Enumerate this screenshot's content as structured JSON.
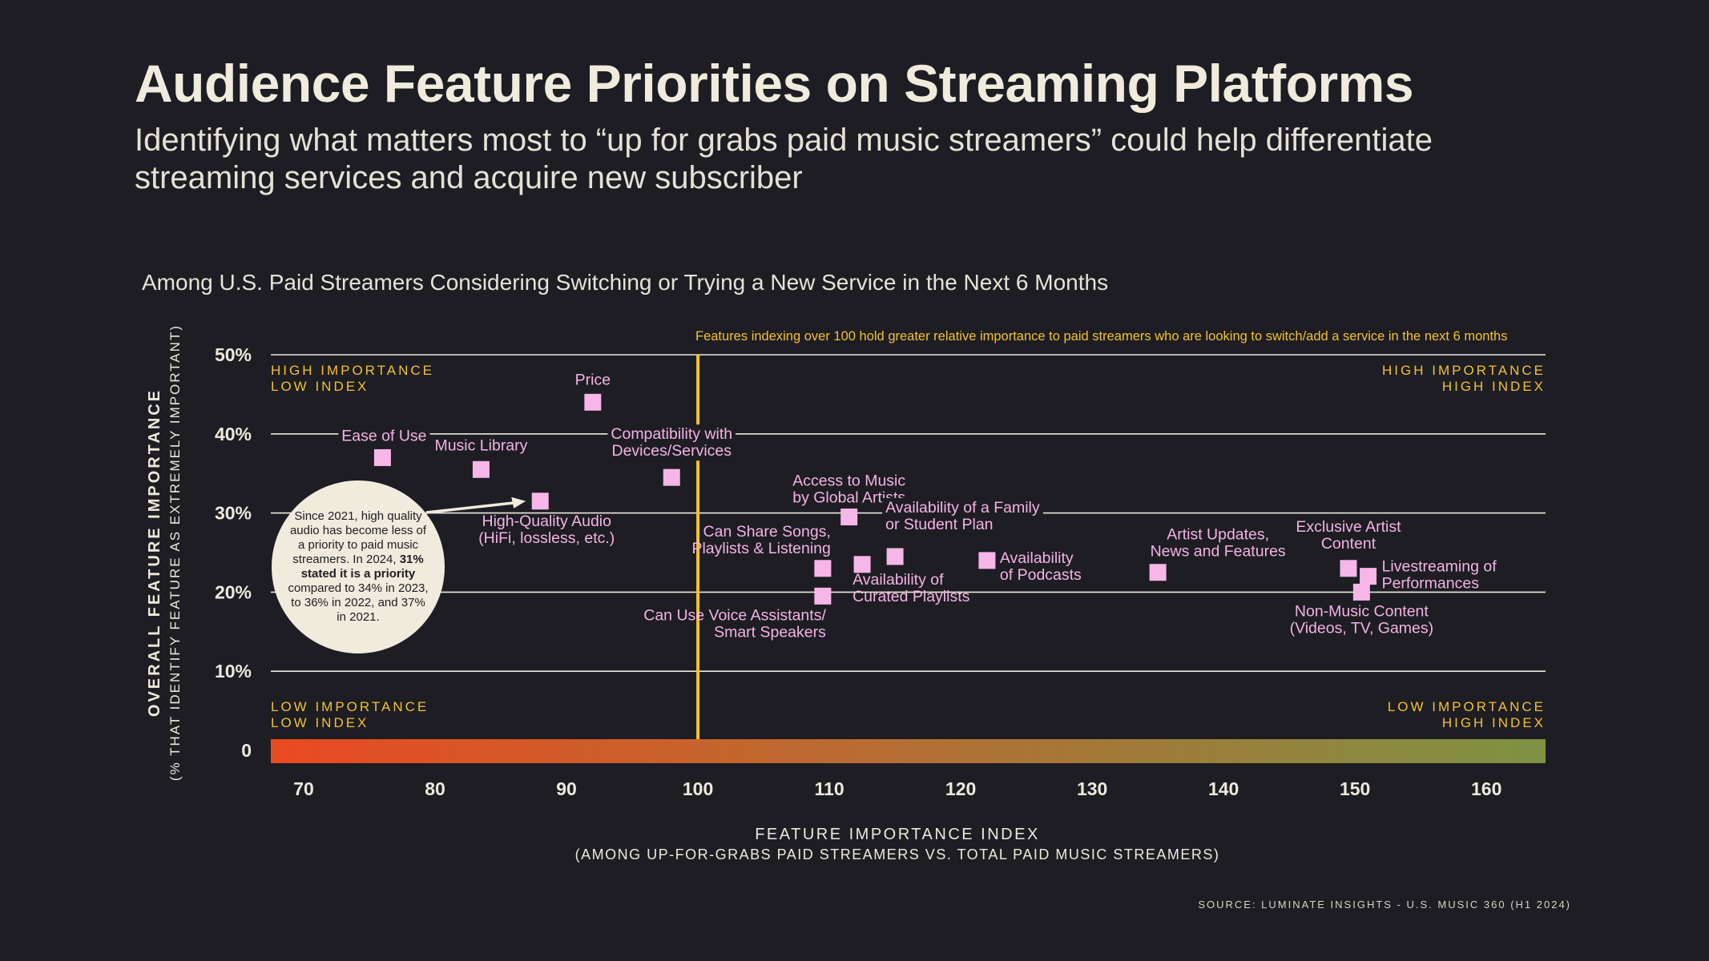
{
  "header": {
    "title": "Audience Feature Priorities on Streaming Platforms",
    "subtitle": "Identifying what matters most to “up for grabs paid music streamers” could help differentiate streaming services and acquire new subscriber"
  },
  "source": "SOURCE: LUMINATE INSIGHTS - U.S. MUSIC 360 (H1 2024)",
  "note": {
    "part1": "Since 2021, high quality audio has become less of a priority to paid music streamers. In 2024, ",
    "bold": "31% stated it is a priority",
    "part2": " compared to 34% in 2023, to 36% in 2022, and 37% in 2021."
  },
  "colors": {
    "background": "#1d1d23",
    "marker": "#f7b6e8",
    "label": "#f5b3e6",
    "accent": "#f2c230",
    "gridline": "#efe9dc",
    "gradient_start": "#ea4a22",
    "gradient_end": "#7e9244"
  },
  "chart_data": {
    "type": "scatter",
    "title": "Among U.S. Paid Streamers Considering Switching or Trying a New Service in the Next 6 Months",
    "annotation": "Features indexing over 100 hold greater relative importance to paid streamers who are looking to switch/add a service in the next 6 months",
    "xlabel": "FEATURE IMPORTANCE INDEX",
    "xlabel_sub": "(AMONG UP-FOR-GRABS PAID STREAMERS VS. TOTAL PAID MUSIC STREAMERS)",
    "ylabel": "OVERALL FEATURE IMPORTANCE",
    "ylabel_sub": "(% THAT IDENTIFY FEATURE AS EXTREMELY IMPORTANT)",
    "xlim": [
      67.5,
      164.5
    ],
    "ylim": [
      0,
      50
    ],
    "x_ticks": [
      70,
      80,
      90,
      100,
      110,
      120,
      130,
      140,
      150,
      160
    ],
    "x_tick_labels": [
      "70",
      "80",
      "90",
      "100",
      "110",
      "120",
      "130",
      "140",
      "150",
      "160"
    ],
    "y_ticks": [
      0,
      10,
      20,
      30,
      40,
      50
    ],
    "y_tick_labels": [
      "0",
      "10%",
      "20%",
      "30%",
      "40%",
      "50%"
    ],
    "reference_x": 100,
    "quadrants": {
      "top_left": [
        "HIGH IMPORTANCE",
        "LOW INDEX"
      ],
      "top_right": [
        "HIGH IMPORTANCE",
        "HIGH INDEX"
      ],
      "bottom_left": [
        "LOW IMPORTANCE",
        "LOW INDEX"
      ],
      "bottom_right": [
        "LOW IMPORTANCE",
        "HIGH INDEX"
      ]
    },
    "points": [
      {
        "name": "Price",
        "label": [
          "Price"
        ],
        "x": 92,
        "y": 44
      },
      {
        "name": "Ease of Use",
        "label": [
          "Ease of Use"
        ],
        "x": 76,
        "y": 37
      },
      {
        "name": "Music Library",
        "label": [
          "Music Library"
        ],
        "x": 83.5,
        "y": 35.5
      },
      {
        "name": "High-Quality Audio",
        "label": [
          "High-Quality Audio",
          "(HiFi, lossless, etc.)"
        ],
        "x": 88,
        "y": 31.5
      },
      {
        "name": "Compatibility with Devices/Services",
        "label": [
          "Compatibility with",
          "Devices/Services"
        ],
        "x": 98,
        "y": 34.5
      },
      {
        "name": "Access to Music by Global Artists",
        "label": [
          "Access to Music",
          "by Global Artists"
        ],
        "x": 111.5,
        "y": 29.5
      },
      {
        "name": "Can Share Songs, Playlists & Listening",
        "label": [
          "Can Share Songs,",
          "Playlists & Listening"
        ],
        "x": 109.5,
        "y": 23
      },
      {
        "name": "Can Use Voice Assistants/Smart Speakers",
        "label": [
          "Can Use Voice Assistants/",
          "Smart Speakers"
        ],
        "x": 109.5,
        "y": 19.5
      },
      {
        "name": "Availability of Curated Playlists",
        "label": [
          "Availability of",
          "Curated Playlists"
        ],
        "x": 112.5,
        "y": 23.5
      },
      {
        "name": "Availability of a Family or Student Plan",
        "label": [
          "Availability of a Family",
          "or Student Plan"
        ],
        "x": 115,
        "y": 24.5
      },
      {
        "name": "Availability of Podcasts",
        "label": [
          "Availability",
          "of Podcasts"
        ],
        "x": 122,
        "y": 24
      },
      {
        "name": "Artist Updates, News and Features",
        "label": [
          "Artist Updates,",
          "News and Features"
        ],
        "x": 135,
        "y": 22.5
      },
      {
        "name": "Exclusive Artist Content",
        "label": [
          "Exclusive Artist",
          "Content"
        ],
        "x": 149.5,
        "y": 23
      },
      {
        "name": "Livestreaming of Performances",
        "label": [
          "Livestreaming of",
          "Performances"
        ],
        "x": 151,
        "y": 22
      },
      {
        "name": "Non-Music Content (Videos, TV, Games)",
        "label": [
          "Non-Music Content",
          "(Videos, TV, Games)"
        ],
        "x": 150.5,
        "y": 20
      }
    ]
  }
}
